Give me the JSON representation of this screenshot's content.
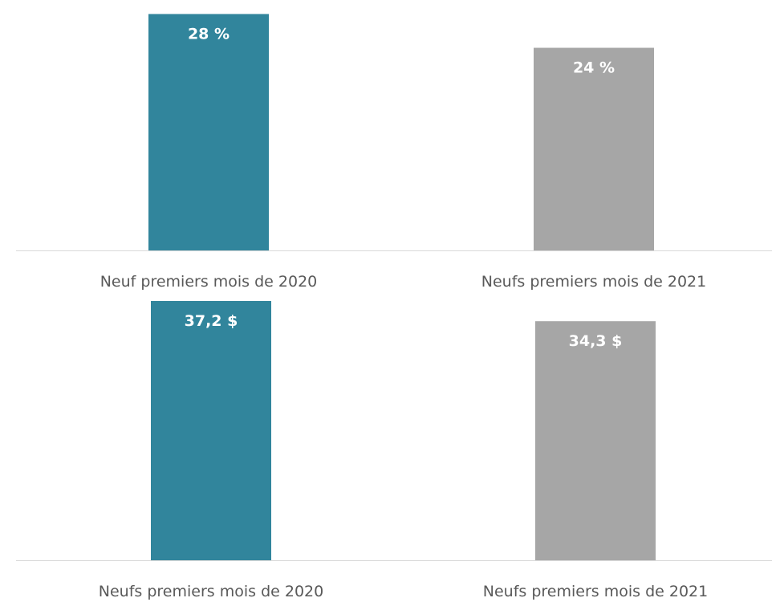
{
  "chart_data": [
    {
      "type": "bar",
      "categories": [
        "Neuf premiers mois de 2020",
        "Neufs premiers mois de 2021"
      ],
      "values": [
        28,
        24
      ],
      "data_labels": [
        "28 %",
        "24 %"
      ],
      "colors": [
        "#31859c",
        "#a6a6a6"
      ],
      "ylim": [
        0,
        28.9
      ],
      "grid": false,
      "title": "",
      "xlabel": "",
      "ylabel": ""
    },
    {
      "type": "bar",
      "categories": [
        "Neufs premiers mois de 2020",
        "Neufs premiers mois de 2021"
      ],
      "values": [
        37.2,
        34.3
      ],
      "data_labels": [
        "37,2 $",
        "34,3 $"
      ],
      "colors": [
        "#31859c",
        "#a6a6a6"
      ],
      "ylim": [
        0,
        37.2
      ],
      "grid": false,
      "title": "",
      "xlabel": "",
      "ylabel": ""
    }
  ]
}
